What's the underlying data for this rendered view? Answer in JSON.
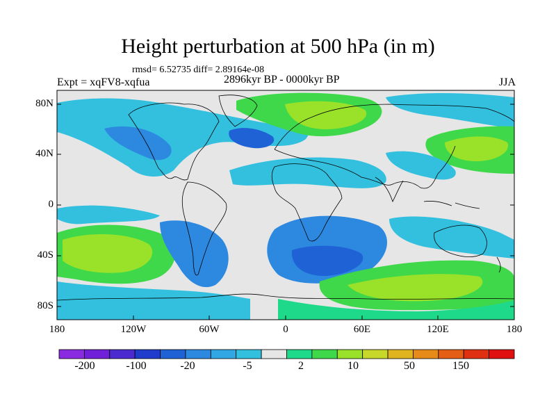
{
  "title": "Height perturbation at 500 hPa (in m)",
  "stats": "rmsd= 6.52735 diff= 2.89164e-08",
  "experiment": "Expt = xqFV8-xqfua",
  "period": "2896kyr BP - 0000kyr BP",
  "season": "JJA",
  "y_axis_labels": [
    "80N",
    "40N",
    "0",
    "40S",
    "80S"
  ],
  "x_axis_labels": [
    "180",
    "120W",
    "60W",
    "0",
    "60E",
    "120E",
    "180"
  ],
  "colorbar": {
    "labels": [
      "-200",
      "-100",
      "-20",
      "-5",
      "2",
      "10",
      "50",
      "150"
    ],
    "colors": [
      "#8a2be2",
      "#7020d8",
      "#4b2ad0",
      "#1f3ccc",
      "#1f62d6",
      "#2d89e0",
      "#31a8e3",
      "#33c0df",
      "#e6e6e6",
      "#1fd98a",
      "#3fd84a",
      "#9ae22a",
      "#c8d82a",
      "#e0b41e",
      "#e68a1a",
      "#e45e16",
      "#e03012",
      "#e01010"
    ]
  },
  "palette": {
    "background": "#e6e6e6",
    "neg_light": "#33c0df",
    "neg_mid": "#2d89e0",
    "neg_dark": "#1f62d6",
    "pos_light": "#1fd98a",
    "pos_mid": "#3fd84a",
    "pos_strong": "#9ae22a"
  }
}
